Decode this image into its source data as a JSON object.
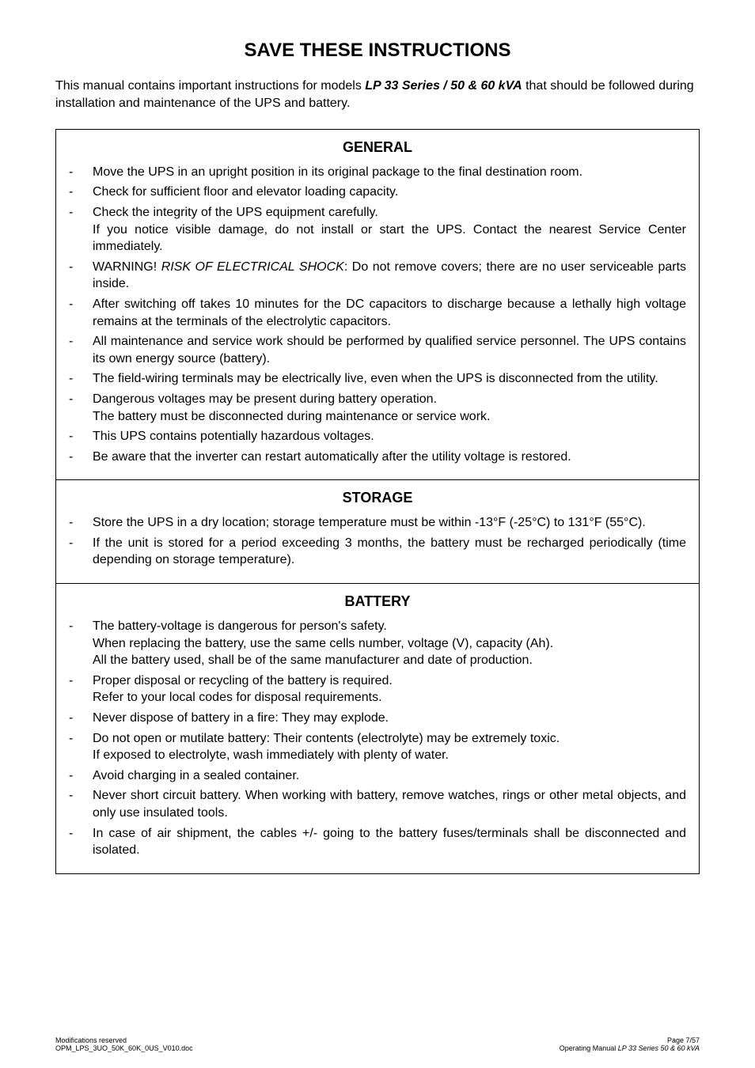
{
  "title": "SAVE THESE INSTRUCTIONS",
  "intro_prefix": "This manual contains important instructions for models ",
  "intro_model": "LP 33 Series / 50 & 60 kVA",
  "intro_suffix": " that should be followed during installation and maintenance of the UPS and battery.",
  "sections": {
    "general": {
      "title": "GENERAL",
      "items": [
        "Move the UPS in an upright position in its original package to the final destination room.",
        "Check for sufficient floor and elevator loading capacity.",
        "Check the integrity of the UPS equipment carefully.\nIf you notice visible damage, do not install or start the UPS. Contact the nearest Service Center immediately.",
        "",
        "After switching off takes 10 minutes for the DC capacitors to discharge because a lethally high voltage remains at the terminals of the electrolytic capacitors.",
        "All maintenance and service work should be performed by qualified service personnel. The UPS contains its own energy source (battery).",
        "The field-wiring terminals may be electrically live, even when the UPS is disconnected from the utility.",
        "Dangerous voltages may be present during battery operation.\nThe battery must be disconnected during maintenance or service work.",
        "This UPS contains potentially hazardous voltages.",
        "Be aware that the inverter can restart automatically after the utility voltage is restored."
      ],
      "warning_prefix": "WARNING! ",
      "warning_italic": "RISK OF ELECTRICAL SHOCK",
      "warning_suffix": ": Do not remove covers; there are no user serviceable parts inside."
    },
    "storage": {
      "title": "STORAGE",
      "items": [
        "Store the UPS in a dry location; storage temperature must be within -13°F  (-25°C) to 131°F (55°C).",
        "If the unit is stored for a period exceeding 3 months, the battery must be recharged periodically (time depending on storage temperature)."
      ]
    },
    "battery": {
      "title": "BATTERY",
      "items": [
        "The battery-voltage is dangerous for person's safety.\nWhen replacing the battery, use the same cells number, voltage (V), capacity (Ah).\nAll the battery used, shall be of the same manufacturer and date of production.",
        "Proper disposal or recycling of the battery is required.\nRefer to your local codes for disposal requirements.",
        "Never dispose of battery in a fire: They may explode.",
        "Do not open or mutilate battery: Their contents (electrolyte) may be extremely toxic.\nIf exposed to electrolyte, wash immediately with plenty of water.",
        "Avoid charging in a sealed container.",
        "Never short circuit battery. When working with battery, remove watches, rings or other metal objects, and only use insulated tools.",
        "In case of air shipment, the cables +/- going to the battery fuses/terminals shall be disconnected and isolated."
      ]
    }
  },
  "footer": {
    "left_line1": "Modifications reserved",
    "left_line2": "OPM_LPS_3UO_50K_60K_0US_V010.doc",
    "right_line1": "Page 7/57",
    "right_line2_prefix": "Operating Manual ",
    "right_line2_italic": "LP 33 Series 50 & 60 kVA"
  }
}
